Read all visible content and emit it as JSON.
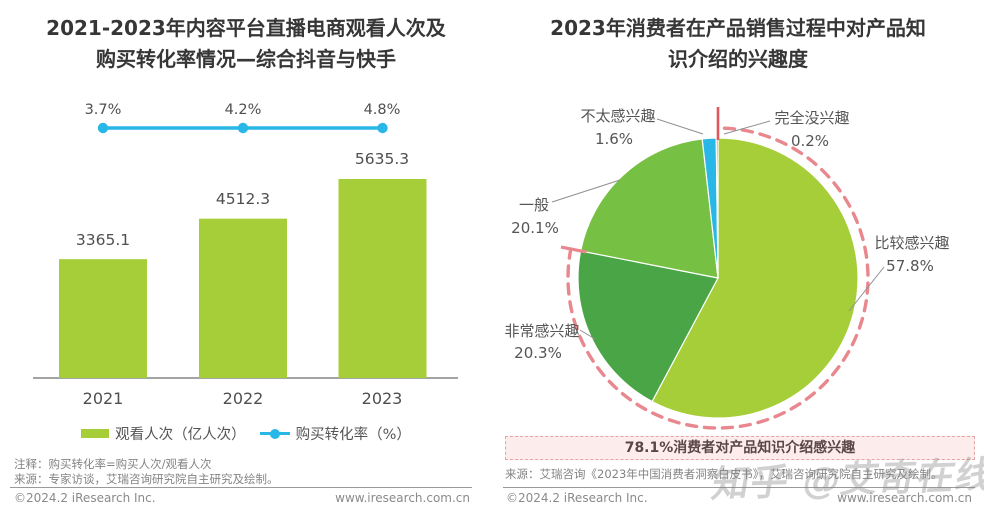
{
  "left": {
    "title_lines": [
      "2021-2023年内容平台直播电商观看人次及",
      "购买转化率情况—综合抖音与快手"
    ],
    "note1": "注释：购买转化率=购买人次/观看人次",
    "note2": "来源：专家访谈，艾瑞咨询研究院自主研究及绘制。",
    "footer_left": "©2024.2 iResearch Inc.",
    "footer_right": "www.iresearch.com.cn"
  },
  "right": {
    "title_lines": [
      "2023年消费者在产品销售过程中对产品知",
      "识介绍的兴趣度"
    ],
    "annotation": "78.1%消费者对产品知识介绍感兴趣",
    "source": "来源：艾瑞咨询《2023年中国消费者洞察白皮书》，艾瑞咨询研究院自主研究及绘制。",
    "watermark": "知乎 @艾奇在线",
    "footer_left": "©2024.2 iResearch Inc.",
    "footer_right": "www.iresearch.com.cn"
  },
  "colors": {
    "bar_green": "#a5ce39",
    "line_cyan": "#29b7e8",
    "pie_dark_green": "#4aa546",
    "pie_mid_green": "#76c043",
    "pie_red_sliver": "#e2575f",
    "dashed_arc_pink": "#e8878d",
    "annotation_bg": "#fdecec",
    "title_text": "#363636",
    "label_text": "#4f4f4f"
  },
  "chart_data": [
    {
      "type": "bar",
      "subtype": "bar+line-combo",
      "title": "2021-2023年内容平台直播电商观看人次及购买转化率情况—综合抖音与快手",
      "categories": [
        "2021",
        "2022",
        "2023"
      ],
      "series": [
        {
          "name": "观看人次（亿人次）",
          "chart": "bar",
          "values": [
            3365.1,
            4512.3,
            5635.3
          ],
          "labels": [
            "3365.1",
            "4512.3",
            "5635.3"
          ],
          "color": "#a5ce39"
        },
        {
          "name": "购买转化率（%）",
          "chart": "line",
          "values": [
            3.7,
            4.2,
            4.8
          ],
          "labels": [
            "3.7%",
            "4.2%",
            "4.8%"
          ],
          "color": "#29b7e8"
        }
      ],
      "ylim": [
        0,
        5635.3
      ],
      "grid": false,
      "legend_position": "bottom"
    },
    {
      "type": "pie",
      "title": "2023年消费者在产品销售过程中对产品知识介绍的兴趣度",
      "start_angle_deg": 0,
      "direction": "clockwise",
      "slices": [
        {
          "label": "比较感兴趣",
          "value": 57.8,
          "pct": "57.8%",
          "color": "#a5ce39"
        },
        {
          "label": "非常感兴趣",
          "value": 20.3,
          "pct": "20.3%",
          "color": "#4aa546"
        },
        {
          "label": "一般",
          "value": 20.1,
          "pct": "20.1%",
          "color": "#76c043"
        },
        {
          "label": "不太感兴趣",
          "value": 1.6,
          "pct": "1.6%",
          "color": "#29b7e8"
        },
        {
          "label": "完全没兴趣",
          "value": 0.2,
          "pct": "0.2%",
          "color": "#e2575f"
        }
      ],
      "highlight": {
        "value": 78.1,
        "covers": [
          "比较感兴趣",
          "非常感兴趣"
        ],
        "style": "dashed-pink-arc",
        "label": "78.1%消费者对产品知识介绍感兴趣"
      }
    }
  ]
}
